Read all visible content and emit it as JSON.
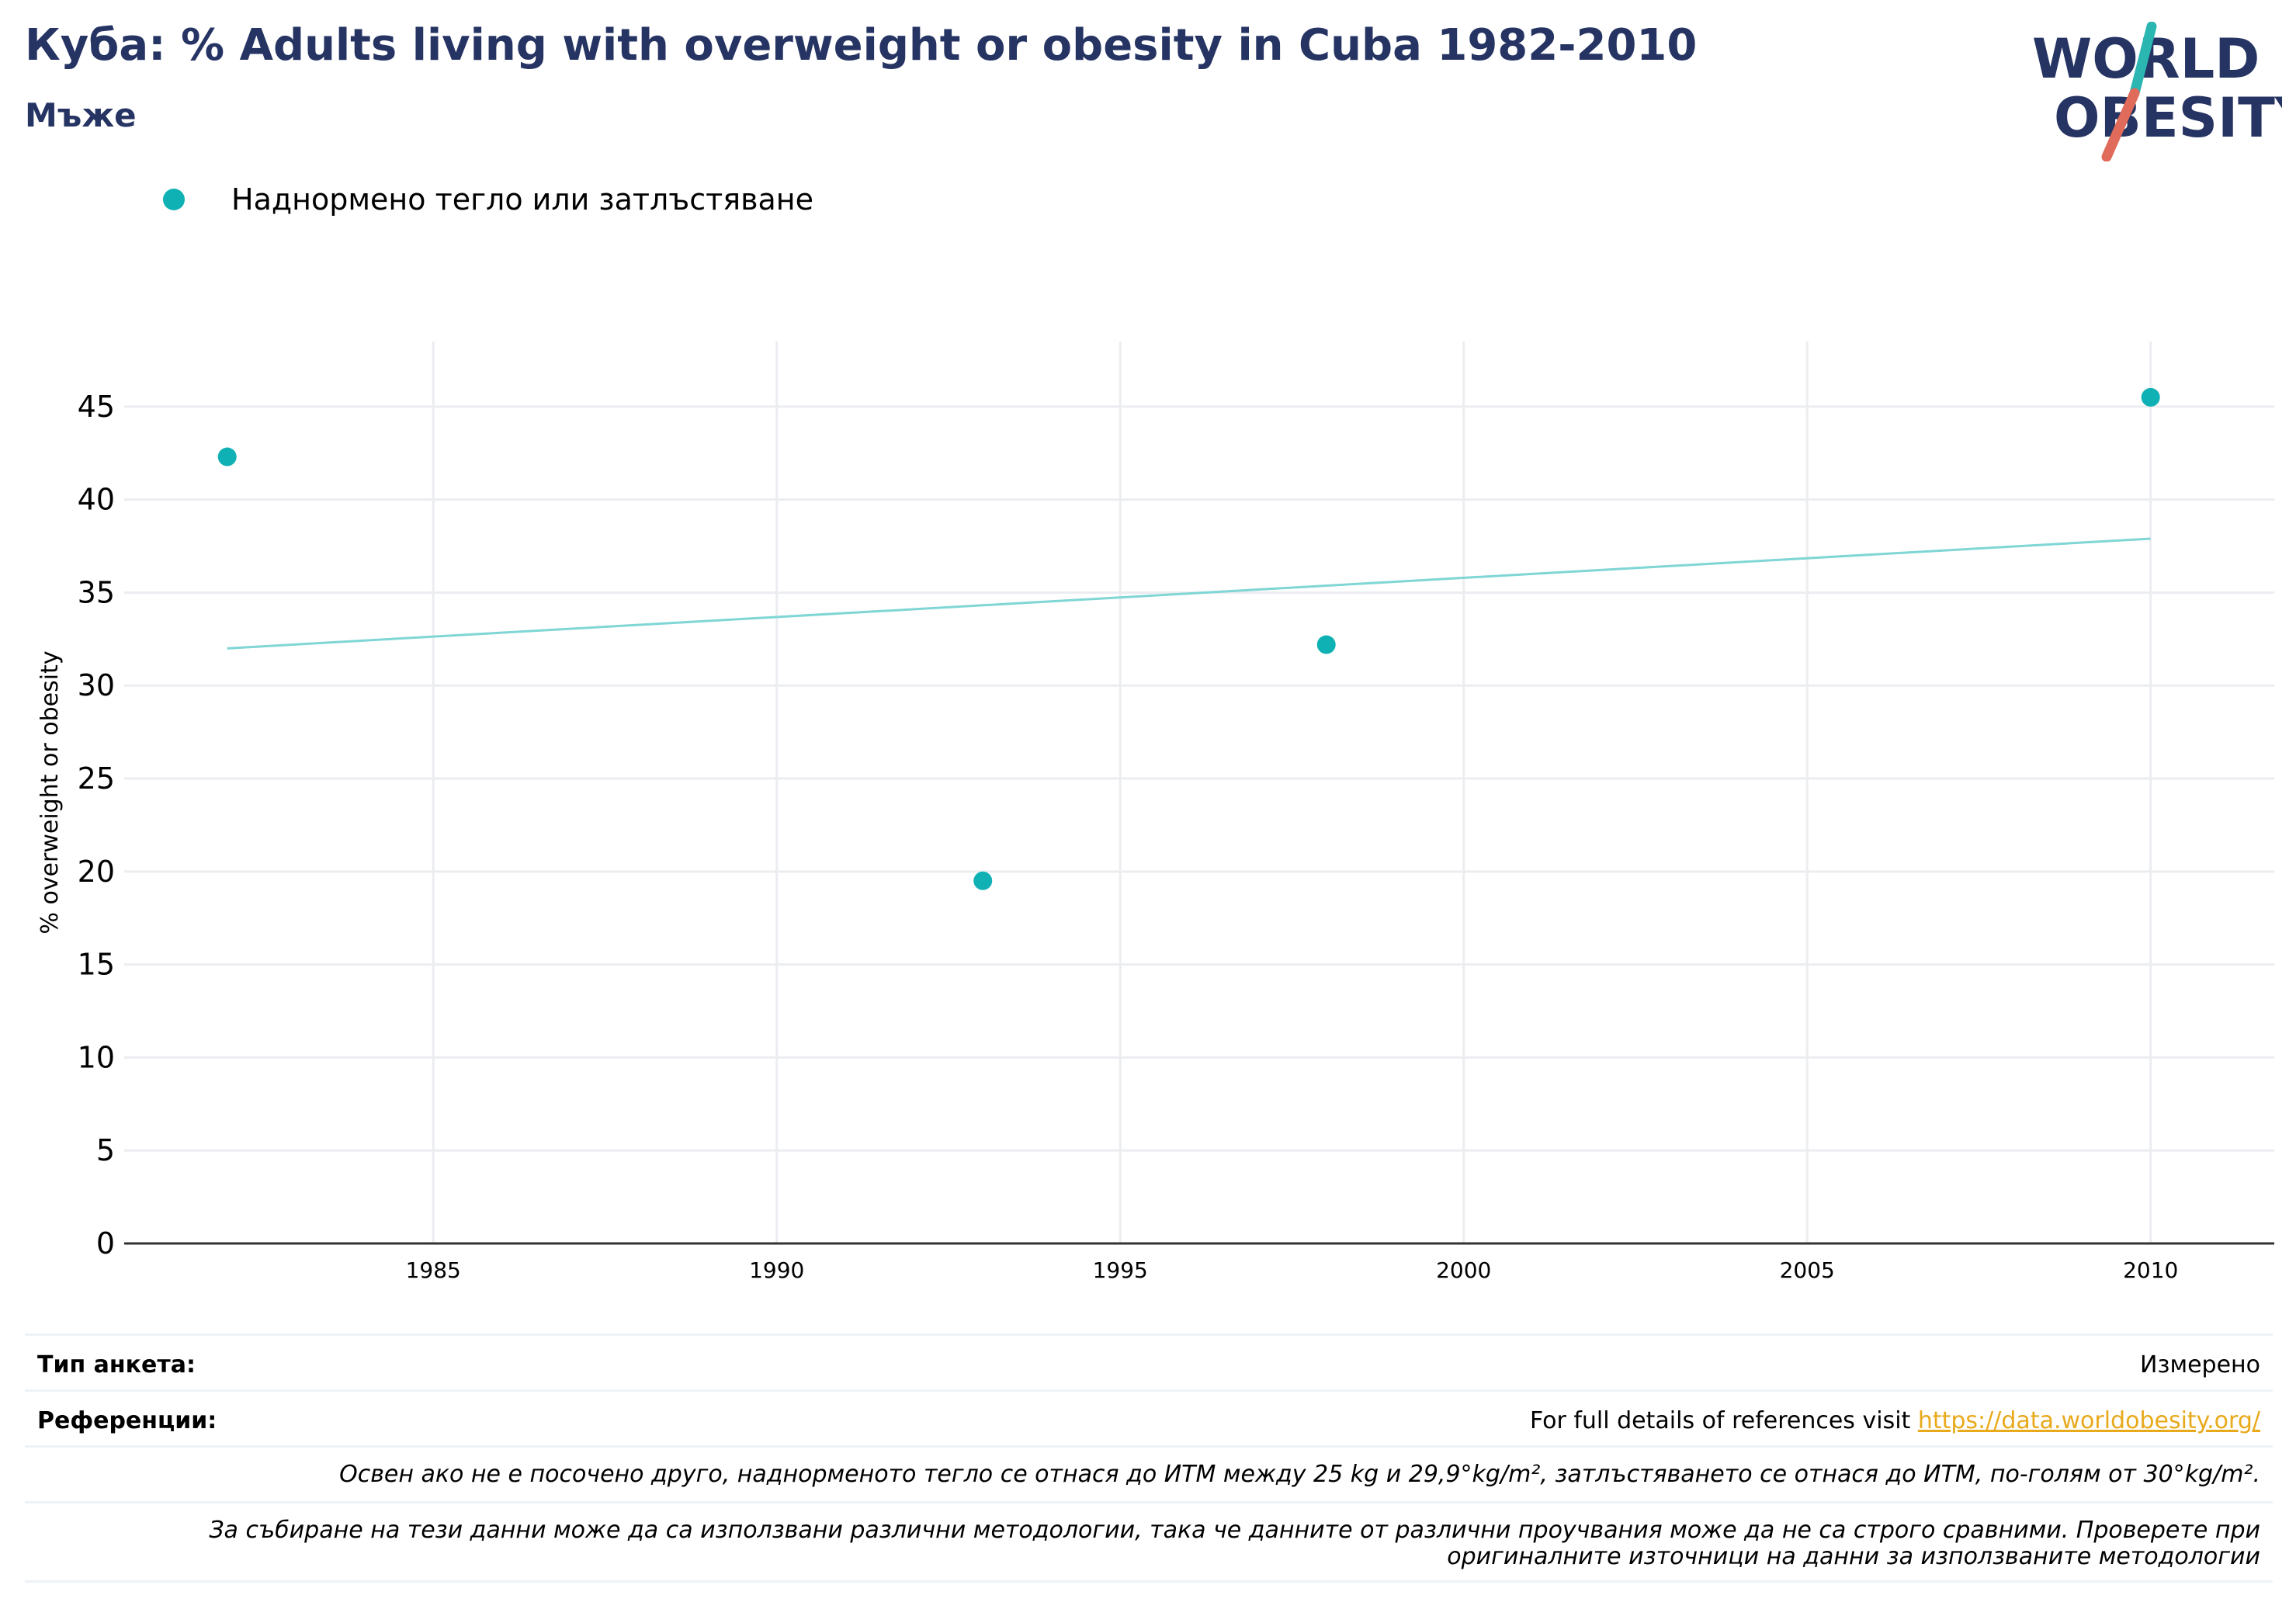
{
  "header": {
    "title": "Куба: % Adults living with overweight or obesity in Cuba 1982-2010",
    "subtitle": "Мъже"
  },
  "logo": {
    "line1": "WORLD",
    "line2": "OBESITY",
    "colors": {
      "text": "#263463",
      "slash_red": "#e06b5a",
      "slash_teal": "#2bb6b2"
    }
  },
  "legend": {
    "label": "Наднормено тегло или затлъстяване",
    "color": "#10b1b5"
  },
  "chart_data": {
    "type": "scatter",
    "ylabel": "% overweight or obesity",
    "xlabel": "",
    "xlim": [
      1980.5,
      2011.8
    ],
    "ylim": [
      0,
      48.5
    ],
    "x_ticks": [
      1985,
      1990,
      1995,
      2000,
      2005,
      2010
    ],
    "y_ticks": [
      0,
      5,
      10,
      15,
      20,
      25,
      30,
      35,
      40,
      45
    ],
    "grid": true,
    "legend_position": "top-left",
    "series": [
      {
        "name": "Наднормено тегло или затлъстяване",
        "color": "#10b1b5",
        "points": [
          {
            "x": 1982,
            "y": 42.3
          },
          {
            "x": 1993,
            "y": 19.5
          },
          {
            "x": 1998,
            "y": 32.2
          },
          {
            "x": 2010,
            "y": 45.5
          }
        ]
      }
    ],
    "trendline": {
      "color": "#7fd6d4",
      "from": {
        "x": 1982,
        "y": 32.0
      },
      "to": {
        "x": 2010,
        "y": 37.9
      }
    }
  },
  "footer": {
    "survey_type_label": "Тип анкета:",
    "survey_type_value": "Измерено",
    "references_label": "Референции:",
    "references_text": "For full details of references visit ",
    "references_link": "https://data.worldobesity.org/",
    "note_bmi": "Освен ако не е посочено друго, наднорменото тегло се отнася до ИТМ между 25 kg и 29,9°kg/m², затлъстяването се отнася до ИТМ, по-голям от 30°kg/m².",
    "note_methods_line1": "За събиране на тези данни може да са използвани различни методологии, така че данните от различни проучвания може да не са строго сравними. Проверете при",
    "note_methods_line2": "оригиналните източници на данни за използваните методологии"
  }
}
